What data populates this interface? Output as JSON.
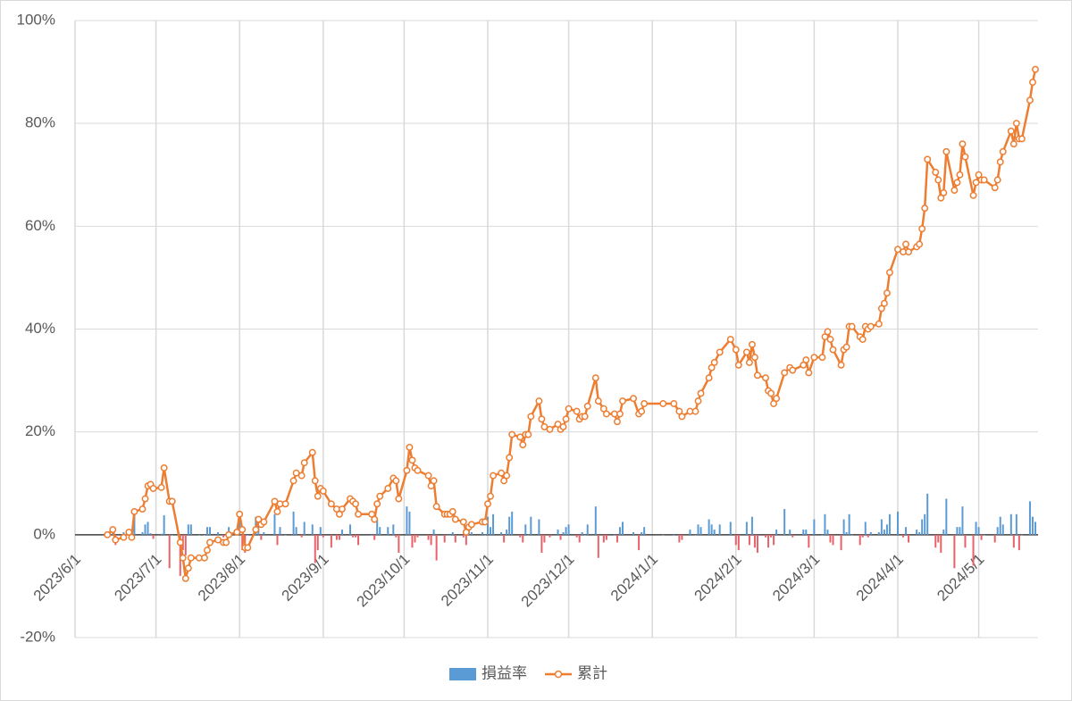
{
  "chart_data": {
    "type": "combo",
    "x": [
      "2023/6/13",
      "2023/6/15",
      "2023/6/16",
      "2023/6/19",
      "2023/6/21",
      "2023/6/22",
      "2023/6/23",
      "2023/6/26",
      "2023/6/27",
      "2023/6/28",
      "2023/6/29",
      "2023/6/30",
      "2023/7/3",
      "2023/7/4",
      "2023/7/6",
      "2023/7/7",
      "2023/7/10",
      "2023/7/11",
      "2023/7/12",
      "2023/7/13",
      "2023/7/14",
      "2023/7/17",
      "2023/7/19",
      "2023/7/20",
      "2023/7/21",
      "2023/7/24",
      "2023/7/26",
      "2023/7/27",
      "2023/7/28",
      "2023/7/31",
      "2023/8/1",
      "2023/8/2",
      "2023/8/3",
      "2023/8/4",
      "2023/8/7",
      "2023/8/8",
      "2023/8/9",
      "2023/8/10",
      "2023/8/14",
      "2023/8/15",
      "2023/8/16",
      "2023/8/18",
      "2023/8/21",
      "2023/8/22",
      "2023/8/24",
      "2023/8/25",
      "2023/8/28",
      "2023/8/29",
      "2023/8/30",
      "2023/8/31",
      "2023/9/1",
      "2023/9/4",
      "2023/9/6",
      "2023/9/7",
      "2023/9/8",
      "2023/9/11",
      "2023/9/12",
      "2023/9/13",
      "2023/9/14",
      "2023/9/19",
      "2023/9/20",
      "2023/9/21",
      "2023/9/22",
      "2023/9/25",
      "2023/9/27",
      "2023/9/28",
      "2023/9/29",
      "2023/10/2",
      "2023/10/3",
      "2023/10/4",
      "2023/10/5",
      "2023/10/6",
      "2023/10/10",
      "2023/10/11",
      "2023/10/12",
      "2023/10/13",
      "2023/10/16",
      "2023/10/17",
      "2023/10/18",
      "2023/10/19",
      "2023/10/20",
      "2023/10/23",
      "2023/10/24",
      "2023/10/25",
      "2023/10/26",
      "2023/10/30",
      "2023/10/31",
      "2023/11/1",
      "2023/11/2",
      "2023/11/3",
      "2023/11/6",
      "2023/11/7",
      "2023/11/8",
      "2023/11/9",
      "2023/11/10",
      "2023/11/13",
      "2023/11/14",
      "2023/11/15",
      "2023/11/16",
      "2023/11/17",
      "2023/11/20",
      "2023/11/21",
      "2023/11/22",
      "2023/11/24",
      "2023/11/27",
      "2023/11/28",
      "2023/11/29",
      "2023/11/30",
      "2023/12/1",
      "2023/12/4",
      "2023/12/5",
      "2023/12/6",
      "2023/12/7",
      "2023/12/8",
      "2023/12/11",
      "2023/12/12",
      "2023/12/14",
      "2023/12/15",
      "2023/12/18",
      "2023/12/19",
      "2023/12/20",
      "2023/12/21",
      "2023/12/25",
      "2023/12/27",
      "2023/12/28",
      "2023/12/29",
      "2024/1/5",
      "2024/1/9",
      "2024/1/11",
      "2024/1/12",
      "2024/1/15",
      "2024/1/17",
      "2024/1/18",
      "2024/1/19",
      "2024/1/22",
      "2024/1/23",
      "2024/1/24",
      "2024/1/26",
      "2024/1/30",
      "2024/2/1",
      "2024/2/2",
      "2024/2/5",
      "2024/2/6",
      "2024/2/7",
      "2024/2/8",
      "2024/2/9",
      "2024/2/12",
      "2024/2/13",
      "2024/2/14",
      "2024/2/15",
      "2024/2/16",
      "2024/2/19",
      "2024/2/21",
      "2024/2/22",
      "2024/2/26",
      "2024/2/27",
      "2024/2/28",
      "2024/3/1",
      "2024/3/4",
      "2024/3/5",
      "2024/3/6",
      "2024/3/7",
      "2024/3/8",
      "2024/3/11",
      "2024/3/12",
      "2024/3/13",
      "2024/3/14",
      "2024/3/15",
      "2024/3/18",
      "2024/3/19",
      "2024/3/20",
      "2024/3/21",
      "2024/3/22",
      "2024/3/25",
      "2024/3/26",
      "2024/3/27",
      "2024/3/28",
      "2024/3/29",
      "2024/4/1",
      "2024/4/3",
      "2024/4/4",
      "2024/4/5",
      "2024/4/8",
      "2024/4/9",
      "2024/4/10",
      "2024/4/11",
      "2024/4/12",
      "2024/4/15",
      "2024/4/16",
      "2024/4/17",
      "2024/4/18",
      "2024/4/19",
      "2024/4/22",
      "2024/4/23",
      "2024/4/24",
      "2024/4/25",
      "2024/4/26",
      "2024/4/29",
      "2024/4/30",
      "2024/5/1",
      "2024/5/2",
      "2024/5/3",
      "2024/5/7",
      "2024/5/8",
      "2024/5/9",
      "2024/5/10",
      "2024/5/13",
      "2024/5/14",
      "2024/5/15",
      "2024/5/16",
      "2024/5/17",
      "2024/5/20",
      "2024/5/21",
      "2024/5/22"
    ],
    "series": [
      {
        "name": "損益率",
        "type": "bar",
        "color": "#5b9bd5",
        "negative_color": "#e8626a",
        "values": [
          0.5,
          1,
          -2,
          0.5,
          1,
          -1,
          5,
          0.5,
          2,
          2.5,
          0.3,
          -0.8,
          0.2,
          3.8,
          -6.5,
          0,
          -8,
          -3,
          -4,
          2,
          2,
          0,
          0,
          1.5,
          1.5,
          0.5,
          -0.5,
          0,
          1.5,
          0.5,
          3.5,
          -3,
          -3.5,
          0,
          3.5,
          2,
          -1,
          0.5,
          4,
          -2,
          1.5,
          0,
          4.5,
          1.5,
          -0.5,
          2.5,
          2,
          -5.5,
          -3,
          1.5,
          -0.5,
          -2.5,
          -1,
          -1,
          1,
          2,
          -0.5,
          -0.5,
          -2,
          0,
          -1,
          3,
          1.5,
          1.5,
          2,
          -0.5,
          -3.5,
          5.5,
          4.5,
          -2.5,
          -1.5,
          -0.5,
          -1,
          -2,
          1,
          -5,
          -1.5,
          0,
          0,
          0.5,
          -1.5,
          -0.5,
          -2,
          1,
          0.5,
          0.5,
          0,
          3.5,
          1.5,
          4,
          0.5,
          -1.5,
          1,
          3.5,
          4.5,
          -0.5,
          -1.5,
          2,
          0,
          3.5,
          3,
          -3.5,
          -1.5,
          -0.5,
          1,
          -1,
          0.5,
          1.5,
          2,
          -0.5,
          -1.5,
          0.5,
          0,
          2,
          5.5,
          -4.5,
          -1.5,
          -1,
          0,
          -1.5,
          1.5,
          2.5,
          0.5,
          -3,
          0.5,
          1.5,
          0,
          0,
          -1.5,
          -1,
          1,
          0,
          2,
          1.5,
          3,
          2,
          1,
          2,
          2.5,
          -2,
          -3,
          2.5,
          -2,
          3.5,
          -2.5,
          -3.5,
          -0.5,
          -2.5,
          -0.5,
          -2,
          1,
          5,
          1,
          -0.5,
          1,
          1,
          -2.5,
          3,
          0,
          4,
          1,
          -1.5,
          -2,
          -3,
          3,
          0.5,
          4,
          0,
          -2,
          -0.5,
          2.5,
          -0.5,
          0.5,
          0.5,
          3,
          1,
          2,
          4,
          4.5,
          -0.5,
          1.5,
          -1.5,
          1,
          0.5,
          3,
          4,
          8,
          -2.5,
          -1.5,
          -3.5,
          1,
          7,
          -6.5,
          1.5,
          1.5,
          5.5,
          -2.5,
          -6,
          2.5,
          1.5,
          -1,
          0,
          -1.5,
          1.5,
          3.5,
          2,
          4,
          -2.5,
          4,
          -3,
          0,
          6.5,
          3.5,
          2.5
        ]
      },
      {
        "name": "累計",
        "type": "line",
        "color": "#ed7d31",
        "values": [
          0,
          1,
          -1,
          -0.5,
          0.5,
          -0.5,
          4.5,
          5,
          7,
          9.5,
          9.8,
          9,
          9.2,
          13,
          6.5,
          6.5,
          -1.5,
          -4.5,
          -8.5,
          -6.5,
          -4.5,
          -4.5,
          -4.5,
          -3,
          -1.5,
          -1,
          -1.5,
          -1.5,
          0,
          0.5,
          4,
          1,
          -2.5,
          -2.5,
          1,
          3,
          2,
          2.5,
          6.5,
          4.5,
          6,
          6,
          10.5,
          12,
          11.5,
          14,
          16,
          10.5,
          7.5,
          9,
          8.5,
          6,
          5,
          4,
          5,
          7,
          6.5,
          6,
          4,
          4,
          3,
          6,
          7.5,
          9,
          11,
          10.5,
          7,
          12.5,
          17,
          14.5,
          13,
          12.5,
          11.5,
          9.5,
          10.5,
          5.5,
          4,
          4,
          4,
          4.5,
          3,
          2.5,
          0.5,
          1.5,
          2,
          2.5,
          2.5,
          6,
          7.5,
          11.5,
          12,
          10.5,
          11.5,
          15,
          19.5,
          19,
          17.5,
          19.5,
          19.5,
          23,
          26,
          22.5,
          21,
          20.5,
          21.5,
          20.5,
          21,
          22.5,
          24.5,
          24,
          22.5,
          23,
          23,
          25,
          30.5,
          26,
          24.5,
          23.5,
          23.5,
          22,
          23.5,
          26,
          26.5,
          23.5,
          24,
          25.5,
          25.5,
          25.5,
          24,
          23,
          24,
          24,
          26,
          27.5,
          30.5,
          32.5,
          33.5,
          35.5,
          38,
          36,
          33,
          35.5,
          33.5,
          37,
          34.5,
          31,
          30.5,
          28,
          27.5,
          25.5,
          26.5,
          31.5,
          32.5,
          32,
          33,
          34,
          31.5,
          34.5,
          34.5,
          38.5,
          39.5,
          38,
          36,
          33,
          36,
          36.5,
          40.5,
          40.5,
          38.5,
          38,
          40.5,
          40,
          40.5,
          41,
          44,
          45,
          47,
          51,
          55.5,
          55,
          56.5,
          55,
          56,
          56.5,
          59.5,
          63.5,
          73,
          70.5,
          69,
          65.5,
          66.5,
          74.5,
          67,
          68.5,
          70,
          76,
          73.5,
          66,
          68.5,
          70,
          69,
          69,
          67.5,
          69,
          72.5,
          74.5,
          78.5,
          76,
          80,
          77,
          77,
          84.5,
          88,
          90.5
        ]
      }
    ],
    "xlim": [
      "2023/6/1",
      "2024/5/23"
    ],
    "xticks": [
      "2023/6/1",
      "2023/7/1",
      "2023/8/1",
      "2023/9/1",
      "2023/10/1",
      "2023/11/1",
      "2023/12/1",
      "2024/1/1",
      "2024/2/1",
      "2024/3/1",
      "2024/4/1",
      "2024/5/1"
    ],
    "ylim": [
      -20,
      100
    ],
    "yticks": [
      {
        "value": -20,
        "label": "-20%"
      },
      {
        "value": 0,
        "label": "0%"
      },
      {
        "value": 20,
        "label": "20%"
      },
      {
        "value": 40,
        "label": "40%"
      },
      {
        "value": 60,
        "label": "60%"
      },
      {
        "value": 80,
        "label": "80%"
      },
      {
        "value": 100,
        "label": "100%"
      }
    ],
    "grid": true,
    "legend": "bottom"
  }
}
